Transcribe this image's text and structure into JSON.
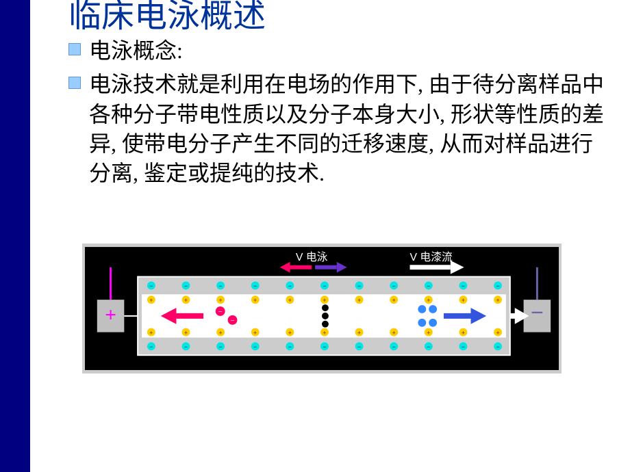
{
  "sidebar_color": "#000080",
  "title": "临床电泳概述",
  "title_color": "#003399",
  "bullets": [
    "电泳概念:",
    "电泳技术就是利用在电场的作用下, 由于待分离样品中各种分子带电性质以及分子本身大小, 形状等性质的差异, 使带电分子产生不同的迁移速度, 从而对样品进行分离, 鉴定或提纯的技术."
  ],
  "bullet_color": "#99ccff",
  "text_color": "#000000",
  "diagram": {
    "bg": "#000000",
    "frame_fill": "#cccccc",
    "channel_fill": "#ffffff",
    "label_v_dy": "V 电泳",
    "label_v_eof": "V 电漆流",
    "label_color": "#ffffff",
    "arrow_left_color": "#ff0066",
    "arrow_mid_color": "#6633cc",
    "arrow_right_color": "#3355dd",
    "arrow_white": "#ffffff",
    "pos_sign": "+",
    "neg_sign": "−",
    "pos_color": "#ff00ff",
    "neg_color": "#6666aa",
    "electrode_fill": "#c0c0c0",
    "wall_plus_color": "#ffcc00",
    "wall_minus_color": "#00e5e5",
    "ion_plus_color": "#ffcc00",
    "ion_neg_color": "#ff0066",
    "ion_blue_color": "#3388ff",
    "ion_black": "#000000",
    "wall_charge_count": 11,
    "frame_border": "#ffffff"
  }
}
